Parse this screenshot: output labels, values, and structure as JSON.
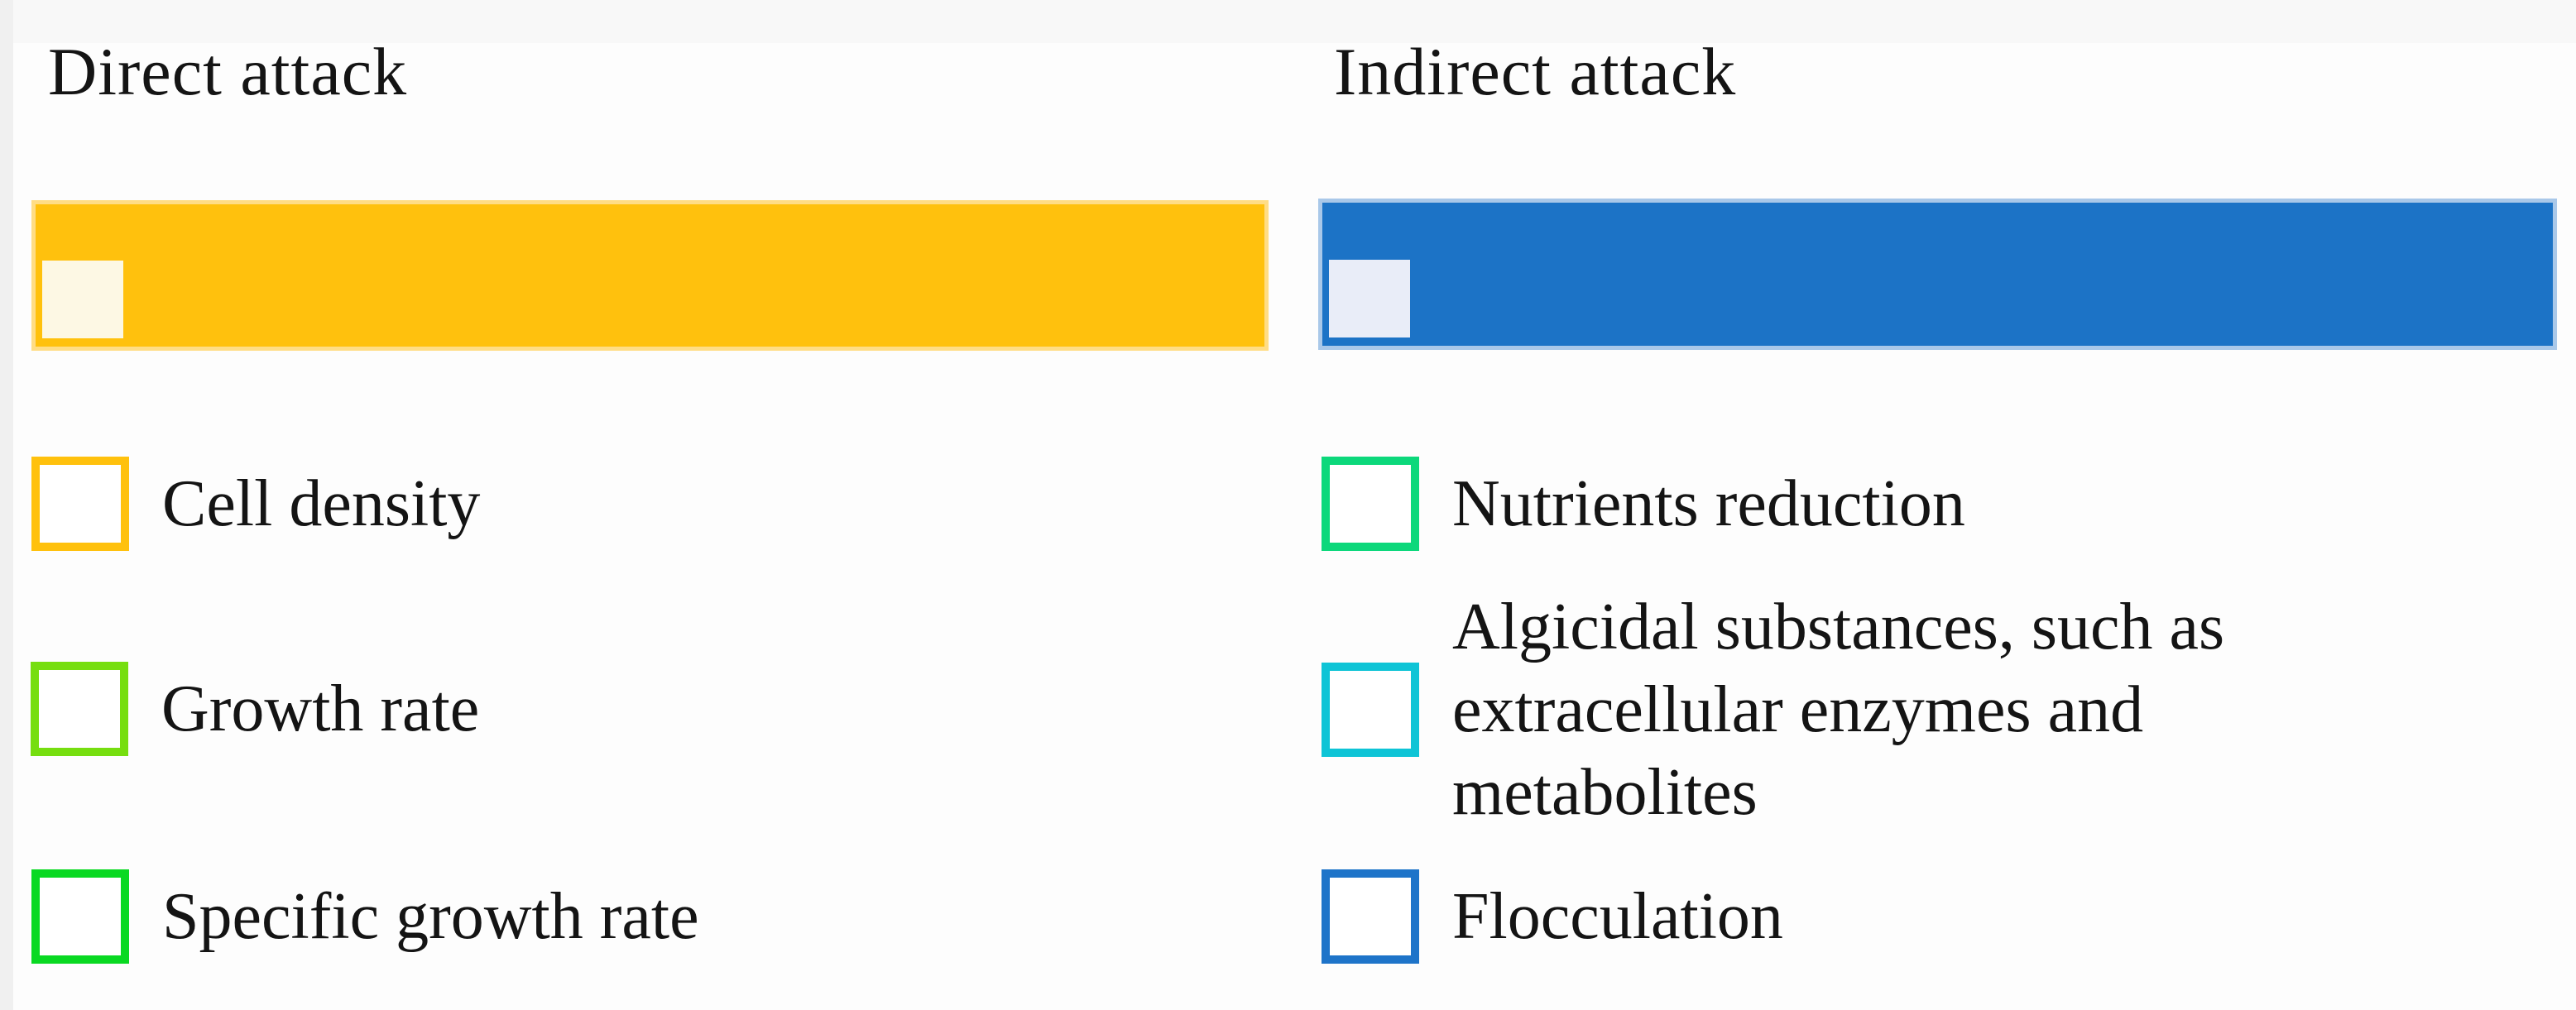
{
  "figure": {
    "background": "#fdfdfd",
    "columns": [
      {
        "title": "Direct attack",
        "bar": {
          "fill": "#FFC10D",
          "edge": "#FFDD85",
          "inner_square_fill": "#FDF8E4"
        },
        "items": [
          {
            "label": "Cell density",
            "box_color": "#FFC10D"
          },
          {
            "label": "Growth rate",
            "box_color": "#76DE0F"
          },
          {
            "label": "Specific growth rate",
            "box_color": "#09D922"
          }
        ]
      },
      {
        "title": "Indirect attack",
        "bar": {
          "fill": "#1C73C6",
          "edge": "#A9C8E9",
          "inner_square_fill": "#E9EDF8"
        },
        "items": [
          {
            "label": "Nutrients reduction",
            "box_color": "#0CD87B"
          },
          {
            "label": "Algicidal substances, such as\nextracellular enzymes and\nmetabolites",
            "box_color": "#0EC4D6"
          },
          {
            "label": "Flocculation",
            "box_color": "#1E74C9"
          }
        ]
      }
    ]
  }
}
